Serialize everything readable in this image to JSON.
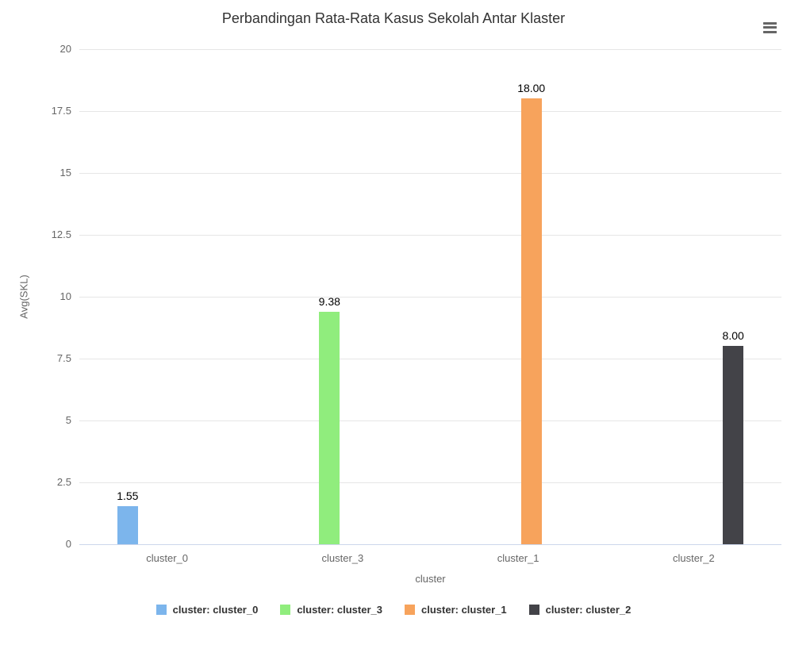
{
  "chart": {
    "context_menu_icon": "hamburger-menu"
  },
  "chart_data": {
    "type": "bar",
    "title": "Perbandingan Rata-Rata Kasus Sekolah Antar Klaster",
    "xlabel": "cluster",
    "ylabel": "Avg(SKL)",
    "categories": [
      "cluster_0",
      "cluster_3",
      "cluster_1",
      "cluster_2"
    ],
    "series": [
      {
        "name": "cluster: cluster_0",
        "category": "cluster_0",
        "value": 1.55,
        "value_label": "1.55",
        "color": "#7cb5ec"
      },
      {
        "name": "cluster: cluster_3",
        "category": "cluster_3",
        "value": 9.38,
        "value_label": "9.38",
        "color": "#90ed7d"
      },
      {
        "name": "cluster: cluster_1",
        "category": "cluster_1",
        "value": 18.0,
        "value_label": "18.00",
        "color": "#f7a35c"
      },
      {
        "name": "cluster: cluster_2",
        "category": "cluster_2",
        "value": 8.0,
        "value_label": "8.00",
        "color": "#434348"
      }
    ],
    "ylim": [
      0,
      20
    ],
    "yticks": [
      0,
      2.5,
      5,
      7.5,
      10,
      12.5,
      15,
      17.5,
      20
    ],
    "ytick_labels": [
      "0",
      "2.5",
      "5",
      "7.5",
      "10",
      "12.5",
      "15",
      "17.5",
      "20"
    ],
    "grid": true,
    "legend_position": "bottom",
    "colors": {
      "gridline": "#e6e6e6",
      "axis_line": "#ccd6eb",
      "tick_text": "#666666",
      "title_text": "#333333",
      "data_label_text": "#000000",
      "legend_text": "#333333",
      "menu_icon": "#666666",
      "background": "#ffffff"
    }
  }
}
